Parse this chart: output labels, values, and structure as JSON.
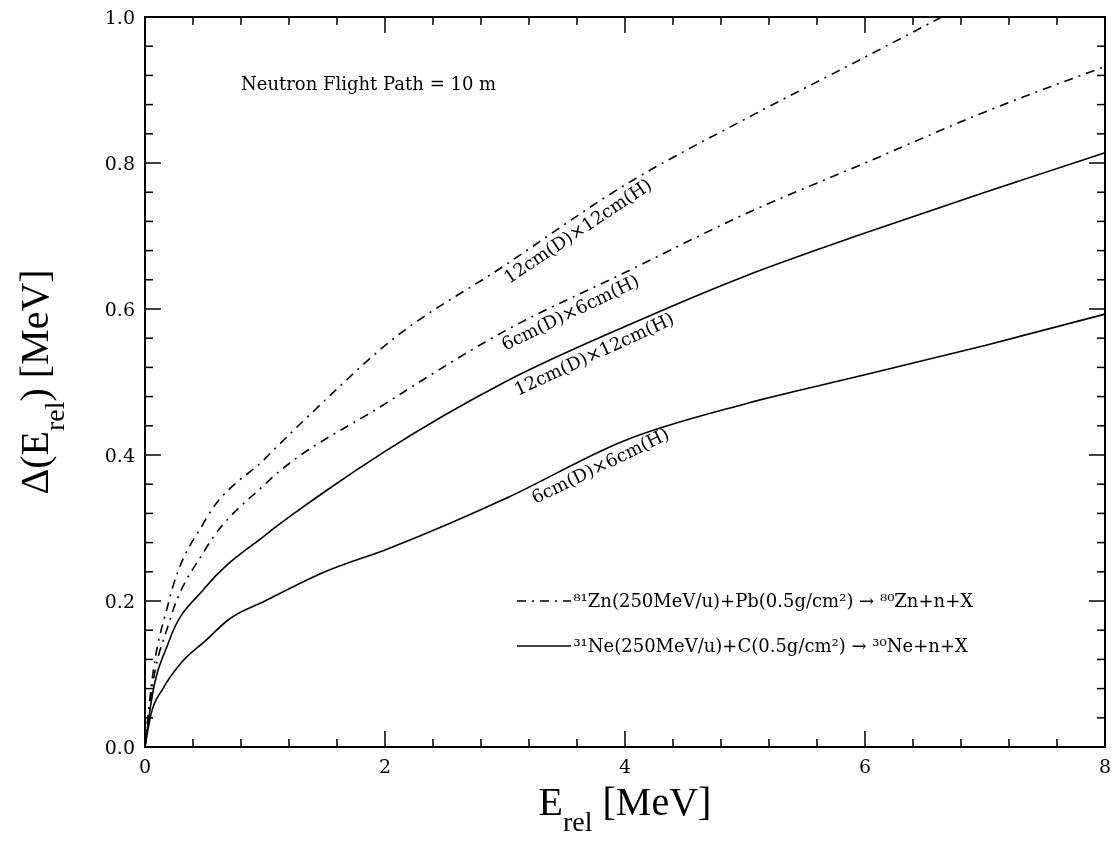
{
  "chart_data": {
    "type": "line",
    "xlabel": "E$_{rel}$ [MeV]",
    "ylabel": "Δ(E$_{rel}$) [MeV]",
    "xlim": [
      0,
      8
    ],
    "ylim": [
      0,
      1
    ],
    "xticks": [
      0,
      {
        "value": 0.4,
        "label": null
      },
      {
        "value": 0.8,
        "label": null
      },
      {
        "value": 1.2,
        "label": null
      },
      {
        "value": 1.6,
        "label": null
      },
      2,
      {
        "value": 2.4,
        "label": null
      },
      {
        "value": 2.8,
        "label": null
      },
      {
        "value": 3.2,
        "label": null
      },
      {
        "value": 3.6,
        "label": null
      },
      4,
      {
        "value": 4.4,
        "label": null
      },
      {
        "value": 4.8,
        "label": null
      },
      {
        "value": 5.2,
        "label": null
      },
      {
        "value": 5.6,
        "label": null
      },
      6,
      {
        "value": 6.4,
        "label": null
      },
      {
        "value": 6.8,
        "label": null
      },
      {
        "value": 7.2,
        "label": null
      },
      {
        "value": 7.6,
        "label": null
      },
      8
    ],
    "yticks": [
      {
        "value": 0,
        "label": "0.0"
      },
      {
        "value": 0.04,
        "label": null
      },
      {
        "value": 0.08,
        "label": null
      },
      {
        "value": 0.12,
        "label": null
      },
      {
        "value": 0.16,
        "label": null
      },
      0.2,
      {
        "value": 0.24,
        "label": null
      },
      {
        "value": 0.28,
        "label": null
      },
      {
        "value": 0.32,
        "label": null
      },
      {
        "value": 0.36,
        "label": null
      },
      0.4,
      {
        "value": 0.44,
        "label": null
      },
      {
        "value": 0.48,
        "label": null
      },
      {
        "value": 0.52,
        "label": null
      },
      {
        "value": 0.56,
        "label": null
      },
      0.6,
      {
        "value": 0.64,
        "label": null
      },
      {
        "value": 0.68,
        "label": null
      },
      {
        "value": 0.72,
        "label": null
      },
      {
        "value": 0.76,
        "label": null
      },
      0.8,
      {
        "value": 0.84,
        "label": null
      },
      {
        "value": 0.88,
        "label": null
      },
      {
        "value": 0.92,
        "label": null
      },
      {
        "value": 0.96,
        "label": null
      },
      {
        "value": 1,
        "label": "1.0"
      }
    ],
    "grid": false,
    "marker": "none",
    "series": [
      {
        "color": "#000000",
        "line_style": "dashdot",
        "x": [
          0,
          0.05,
          0.2,
          0.5,
          1,
          1.5,
          2,
          3,
          4,
          5,
          6,
          6.64
        ],
        "values": [
          0,
          0.08,
          0.2,
          0.31,
          0.395,
          0.475,
          0.55,
          0.66,
          0.77,
          0.86,
          0.945,
          1.0
        ]
      },
      {
        "color": "#000000",
        "line_style": "dashdot",
        "x": [
          0,
          0.05,
          0.2,
          0.5,
          1,
          2,
          3,
          4,
          5,
          6,
          7,
          8
        ],
        "values": [
          0,
          0.07,
          0.17,
          0.27,
          0.36,
          0.47,
          0.57,
          0.65,
          0.73,
          0.8,
          0.87,
          0.932
        ]
      },
      {
        "color": "#000000",
        "line_style": "solid",
        "x": [
          0,
          0.05,
          0.2,
          0.5,
          1,
          1.5,
          2,
          3,
          4,
          5,
          6,
          7,
          8
        ],
        "values": [
          0,
          0.06,
          0.145,
          0.218,
          0.29,
          0.35,
          0.405,
          0.5,
          0.576,
          0.645,
          0.704,
          0.76,
          0.814
        ]
      },
      {
        "color": "#000000",
        "line_style": "solid",
        "x": [
          0,
          0.05,
          0.15,
          0.3,
          0.5,
          0.7,
          1,
          1.5,
          2,
          3,
          4,
          5,
          6,
          7,
          8
        ],
        "values": [
          0,
          0.045,
          0.08,
          0.115,
          0.145,
          0.175,
          0.2,
          0.24,
          0.27,
          0.34,
          0.42,
          0.47,
          0.51,
          0.55,
          0.593
        ]
      }
    ],
    "annotations": [
      "Neutron Flight Path = 10 m",
      "⁸¹Zn(250MeV/u)+Pb(0.5g/cm²) → ⁸⁰Zn+n+X",
      "³¹Ne(250MeV/u)+C(0.5g/cm²) → ³⁰Ne+n+X",
      "12cm(D)×12cm(H)",
      "6cm(D)×6cm(H)",
      "12cm(D)×12cm(H)",
      "6cm(D)×6cm(H)"
    ]
  }
}
